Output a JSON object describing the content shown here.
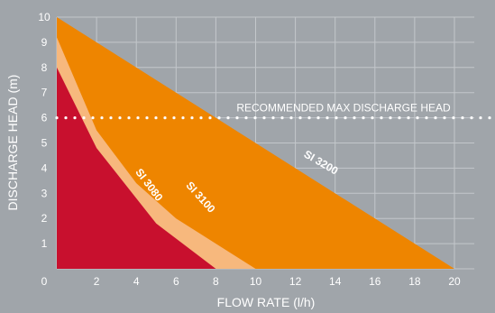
{
  "chart_data": {
    "type": "area",
    "xlabel": "FLOW RATE (l/h)",
    "ylabel": "DISCHARGE HEAD (m)",
    "xlim": [
      0,
      21
    ],
    "ylim": [
      0,
      10
    ],
    "xticks": [
      0,
      2,
      4,
      6,
      8,
      10,
      12,
      14,
      16,
      18,
      20
    ],
    "yticks": [
      1,
      2,
      3,
      4,
      5,
      6,
      7,
      8,
      9,
      10
    ],
    "grid": true,
    "series": [
      {
        "name": "SI 3200",
        "color": "#ee8500",
        "x": [
          0,
          20
        ],
        "y": [
          10,
          0
        ]
      },
      {
        "name": "SI 3100",
        "color": "#f7b87d",
        "x": [
          0,
          2,
          4,
          6,
          8,
          10
        ],
        "y": [
          9.2,
          5.5,
          3.4,
          2.0,
          1.0,
          0
        ]
      },
      {
        "name": "SI 3080",
        "color": "#c8102e",
        "x": [
          0,
          2,
          4,
          5,
          6,
          8
        ],
        "y": [
          8,
          4.8,
          2.8,
          1.8,
          1.2,
          0
        ]
      }
    ],
    "annotations": [
      {
        "text": "RECOMMENDED MAX DISCHARGE HEAD",
        "type": "hline",
        "y": 6,
        "color": "#ffffff"
      }
    ]
  }
}
